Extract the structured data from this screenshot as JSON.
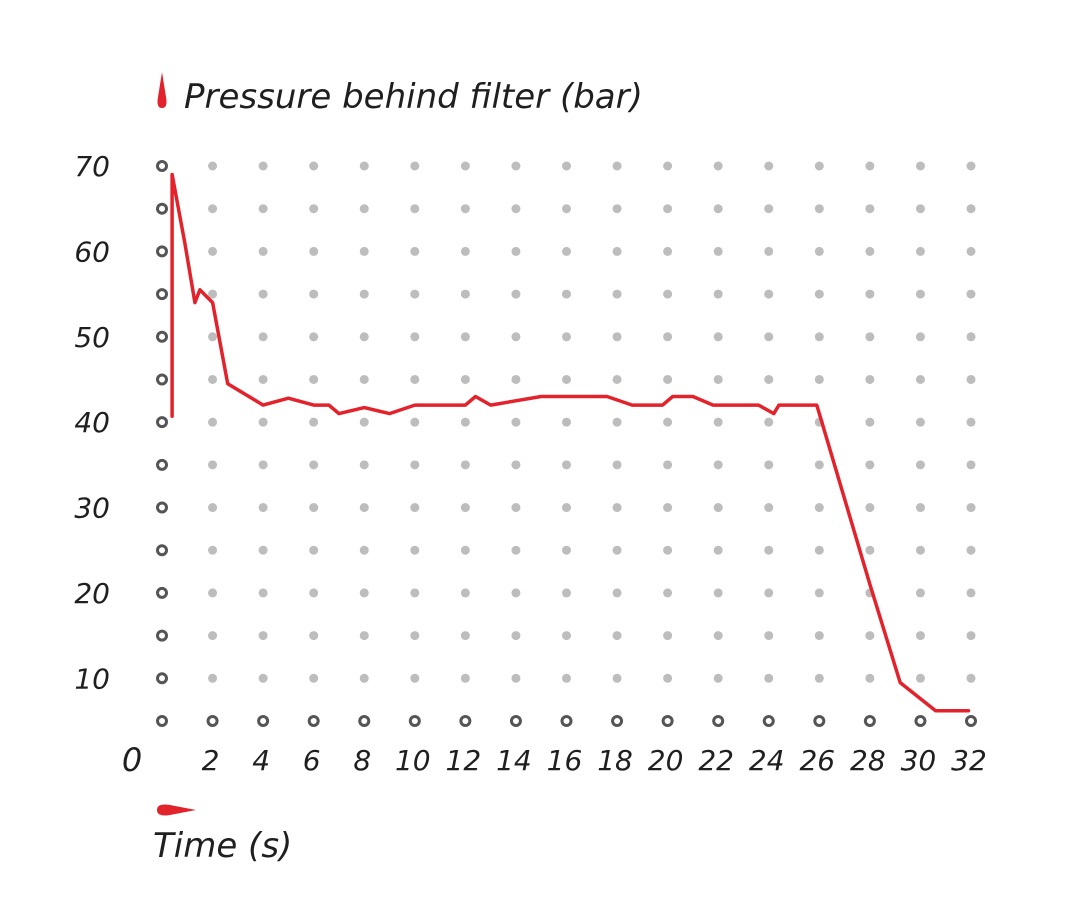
{
  "chart_data": {
    "type": "line",
    "ylabel": "Pressure behind filter (bar)",
    "xlabel": "Time (s)",
    "origin_label": "0",
    "x_ticks": [
      "2",
      "4",
      "6",
      "8",
      "10",
      "12",
      "14",
      "16",
      "18",
      "20",
      "22",
      "24",
      "26",
      "28",
      "30",
      "32"
    ],
    "y_ticks": [
      "10",
      "20",
      "30",
      "40",
      "50",
      "60",
      "70"
    ],
    "xlim": [
      0,
      32
    ],
    "ylim": [
      5,
      70
    ],
    "grid": "dots",
    "colors": {
      "series": "#e3232c",
      "axis_dot": "#555555",
      "grid_dot": "#bdbdbd",
      "arrow": "#e3232c"
    },
    "series": [
      {
        "x": [
          0.4,
          0.4,
          0.9,
          1.3,
          1.5,
          2.0,
          2.6,
          4.0,
          5.0,
          6.0,
          6.6,
          7.0,
          8.0,
          9.0,
          10.0,
          12.0,
          12.4,
          13.0,
          15.0,
          17.6,
          18.6,
          19.8,
          20.2,
          21.0,
          21.8,
          23.6,
          24.2,
          24.4,
          25.9,
          26.2,
          28.0,
          29.2,
          30.6,
          31.9
        ],
        "y": [
          40.7,
          69.0,
          61.0,
          54.0,
          55.5,
          54.0,
          44.5,
          42.0,
          42.8,
          42.0,
          42.0,
          41.0,
          41.7,
          41.0,
          42.0,
          42.0,
          43.0,
          42.0,
          43.0,
          43.0,
          42.0,
          42.0,
          43.0,
          43.0,
          42.0,
          42.0,
          41.0,
          42.0,
          42.0,
          39.0,
          21.0,
          9.5,
          6.2,
          6.2
        ]
      }
    ]
  }
}
